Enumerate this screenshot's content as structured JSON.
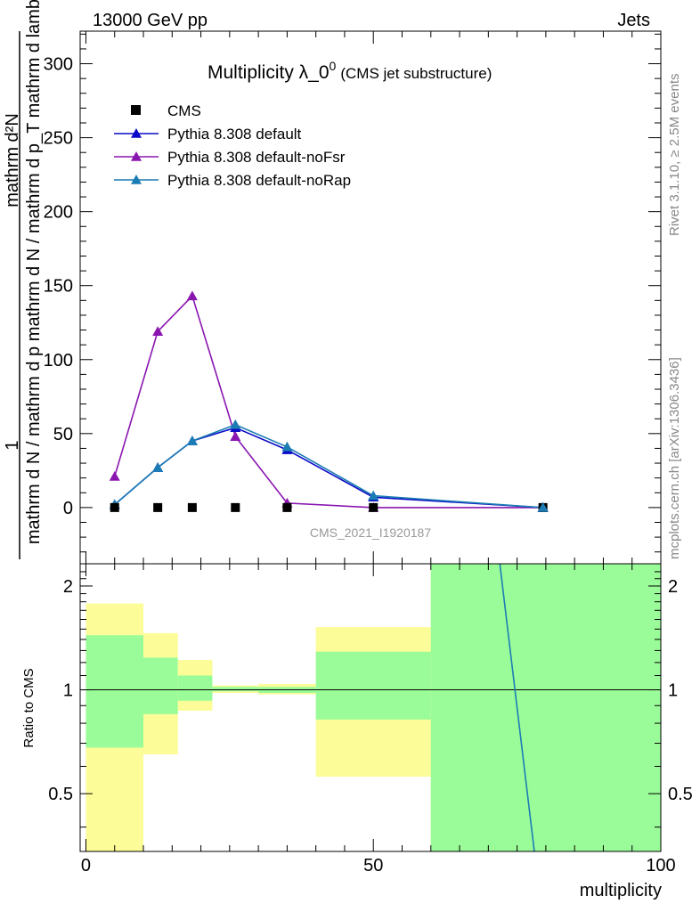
{
  "header": {
    "left": "13000 GeV pp",
    "right": "Jets"
  },
  "title": {
    "main": "Multiplicity λ_0",
    "sup": "0",
    "sub": "(CMS jet substructure)"
  },
  "ylabel_main": "mathrm d N / mathrm d p_T mathrm d lambda",
  "ylabel_frac_top": "mathrm d²N",
  "ylabel_frac_num": "1",
  "ylabel_mid": "mathrm d N / mathrm d p",
  "side_text_1": "Rivet 3.1.10, ≥ 2.5M events",
  "side_text_2": "mcplots.cern.ch [arXiv:1306.3436]",
  "watermark": "CMS_2021_I1920187",
  "ratio_ylabel": "Ratio to CMS",
  "xlabel": "multiplicity",
  "legend": [
    {
      "name": "CMS",
      "marker": "square",
      "color": "#000000"
    },
    {
      "name": "Pythia 8.308 default",
      "marker": "triangle",
      "color": "#0a0ac8"
    },
    {
      "name": "Pythia 8.308 default-noFsr",
      "marker": "triangle",
      "color": "#8a16b0"
    },
    {
      "name": "Pythia 8.308 default-noRap",
      "marker": "triangle",
      "color": "#1c7cb4"
    }
  ],
  "chart_data": {
    "type": "line",
    "xlim": [
      -1,
      100
    ],
    "ylim": [
      -38,
      322
    ],
    "xticks": [
      0,
      50,
      100
    ],
    "yticks": [
      0,
      50,
      100,
      150,
      200,
      250,
      300
    ],
    "ratio_ylim": [
      0.34,
      2.32
    ],
    "ratio_yticks": [
      0.5,
      1,
      2
    ],
    "series": [
      {
        "name": "CMS",
        "x": [
          5,
          12.5,
          18.5,
          26,
          35,
          50,
          79.5
        ],
        "y": [
          0,
          0,
          0,
          0,
          0,
          0,
          0
        ]
      },
      {
        "name": "Pythia 8.308 default",
        "x": [
          5,
          12.5,
          18.5,
          26,
          35,
          50,
          79.5
        ],
        "y": [
          2,
          27,
          45,
          54,
          39,
          7,
          0
        ]
      },
      {
        "name": "Pythia 8.308 default-noFsr",
        "x": [
          5,
          12.5,
          18.5,
          26,
          35,
          50,
          79.5
        ],
        "y": [
          21,
          119,
          143,
          48,
          3,
          0,
          0
        ]
      },
      {
        "name": "Pythia 8.308 default-noRap",
        "x": [
          5,
          12.5,
          18.5,
          26,
          35,
          50,
          79.5
        ],
        "y": [
          2,
          27,
          45,
          56,
          41,
          8,
          0
        ]
      }
    ],
    "ratio_bands": [
      {
        "x0": 0,
        "x1": 10,
        "yellow": [
          0.1,
          1.78
        ],
        "green": [
          0.68,
          1.44
        ]
      },
      {
        "x0": 10,
        "x1": 16,
        "yellow": [
          0.65,
          1.46
        ],
        "green": [
          0.85,
          1.24
        ]
      },
      {
        "x0": 16,
        "x1": 22,
        "yellow": [
          0.87,
          1.22
        ],
        "green": [
          0.93,
          1.1
        ]
      },
      {
        "x0": 22,
        "x1": 30,
        "yellow": [
          0.98,
          1.03
        ],
        "green": [
          0.99,
          1.02
        ]
      },
      {
        "x0": 30,
        "x1": 40,
        "yellow": [
          0.97,
          1.04
        ],
        "green": [
          0.98,
          1.02
        ]
      },
      {
        "x0": 40,
        "x1": 60,
        "yellow": [
          0.56,
          1.52
        ],
        "green": [
          0.82,
          1.29
        ]
      },
      {
        "x0": 60,
        "x1": 100,
        "yellow": [
          0.34,
          2.32
        ],
        "green": [
          0.34,
          2.32
        ]
      }
    ],
    "ratio_line": {
      "x": [
        72,
        78
      ],
      "y": [
        2.32,
        0.34
      ]
    }
  }
}
